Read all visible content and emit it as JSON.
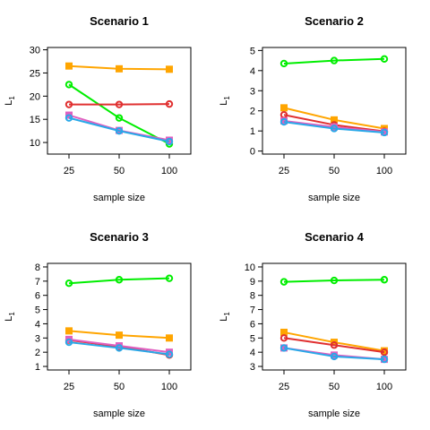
{
  "series_colors": [
    "#00ee00",
    "#ffa500",
    "#e03030",
    "#e060c0",
    "#28a8e8"
  ],
  "chart_data": [
    {
      "type": "line",
      "title": "Scenario 1",
      "xlabel": "sample size",
      "ylabel": "L",
      "ylabel_sub": "1",
      "x": [
        "25",
        "50",
        "100"
      ],
      "ylim": [
        7.5,
        30.5
      ],
      "yticks": [
        10,
        15,
        20,
        25,
        30
      ],
      "series": [
        {
          "color": "#00ee00",
          "marker": "circle",
          "values": [
            22.5,
            15.3,
            9.7
          ]
        },
        {
          "color": "#ffa500",
          "marker": "square",
          "values": [
            26.5,
            25.9,
            25.8
          ]
        },
        {
          "color": "#e03030",
          "marker": "circle",
          "values": [
            18.2,
            18.2,
            18.3
          ]
        },
        {
          "color": "#e060c0",
          "marker": "square",
          "values": [
            15.9,
            12.6,
            10.5
          ]
        },
        {
          "color": "#28a8e8",
          "marker": "circle",
          "values": [
            15.3,
            12.5,
            10.2
          ]
        }
      ]
    },
    {
      "type": "line",
      "title": "Scenario 2",
      "xlabel": "sample size",
      "ylabel": "L",
      "ylabel_sub": "1",
      "x": [
        "25",
        "50",
        "100"
      ],
      "ylim": [
        -0.15,
        5.15
      ],
      "yticks": [
        0,
        1,
        2,
        3,
        4,
        5
      ],
      "series": [
        {
          "color": "#00ee00",
          "marker": "circle",
          "values": [
            4.35,
            4.5,
            4.58
          ]
        },
        {
          "color": "#ffa500",
          "marker": "square",
          "values": [
            2.15,
            1.55,
            1.12
          ]
        },
        {
          "color": "#e03030",
          "marker": "circle",
          "values": [
            1.8,
            1.3,
            0.98
          ]
        },
        {
          "color": "#e060c0",
          "marker": "square",
          "values": [
            1.5,
            1.2,
            0.95
          ]
        },
        {
          "color": "#28a8e8",
          "marker": "circle",
          "values": [
            1.45,
            1.12,
            0.92
          ]
        }
      ]
    },
    {
      "type": "line",
      "title": "Scenario 3",
      "xlabel": "sample size",
      "ylabel": "L",
      "ylabel_sub": "1",
      "x": [
        "25",
        "50",
        "100"
      ],
      "ylim": [
        0.75,
        8.25
      ],
      "yticks": [
        1,
        2,
        3,
        4,
        5,
        6,
        7,
        8
      ],
      "series": [
        {
          "color": "#00ee00",
          "marker": "circle",
          "values": [
            6.85,
            7.1,
            7.2
          ]
        },
        {
          "color": "#ffa500",
          "marker": "square",
          "values": [
            3.5,
            3.2,
            3.0
          ]
        },
        {
          "color": "#e03030",
          "marker": "circle",
          "values": [
            2.85,
            2.4,
            1.8
          ]
        },
        {
          "color": "#e060c0",
          "marker": "square",
          "values": [
            2.9,
            2.45,
            2.0
          ]
        },
        {
          "color": "#28a8e8",
          "marker": "circle",
          "values": [
            2.7,
            2.3,
            1.85
          ]
        }
      ]
    },
    {
      "type": "line",
      "title": "Scenario 4",
      "xlabel": "sample size",
      "ylabel": "L",
      "ylabel_sub": "1",
      "x": [
        "25",
        "50",
        "100"
      ],
      "ylim": [
        2.75,
        10.25
      ],
      "yticks": [
        3,
        4,
        5,
        6,
        7,
        8,
        9,
        10
      ],
      "series": [
        {
          "color": "#00ee00",
          "marker": "circle",
          "values": [
            8.95,
            9.05,
            9.1
          ]
        },
        {
          "color": "#ffa500",
          "marker": "square",
          "values": [
            5.4,
            4.7,
            4.1
          ]
        },
        {
          "color": "#e03030",
          "marker": "circle",
          "values": [
            5.0,
            4.5,
            4.0
          ]
        },
        {
          "color": "#e060c0",
          "marker": "square",
          "values": [
            4.3,
            3.8,
            3.5
          ]
        },
        {
          "color": "#28a8e8",
          "marker": "circle",
          "values": [
            4.3,
            3.7,
            3.5
          ]
        }
      ]
    }
  ]
}
